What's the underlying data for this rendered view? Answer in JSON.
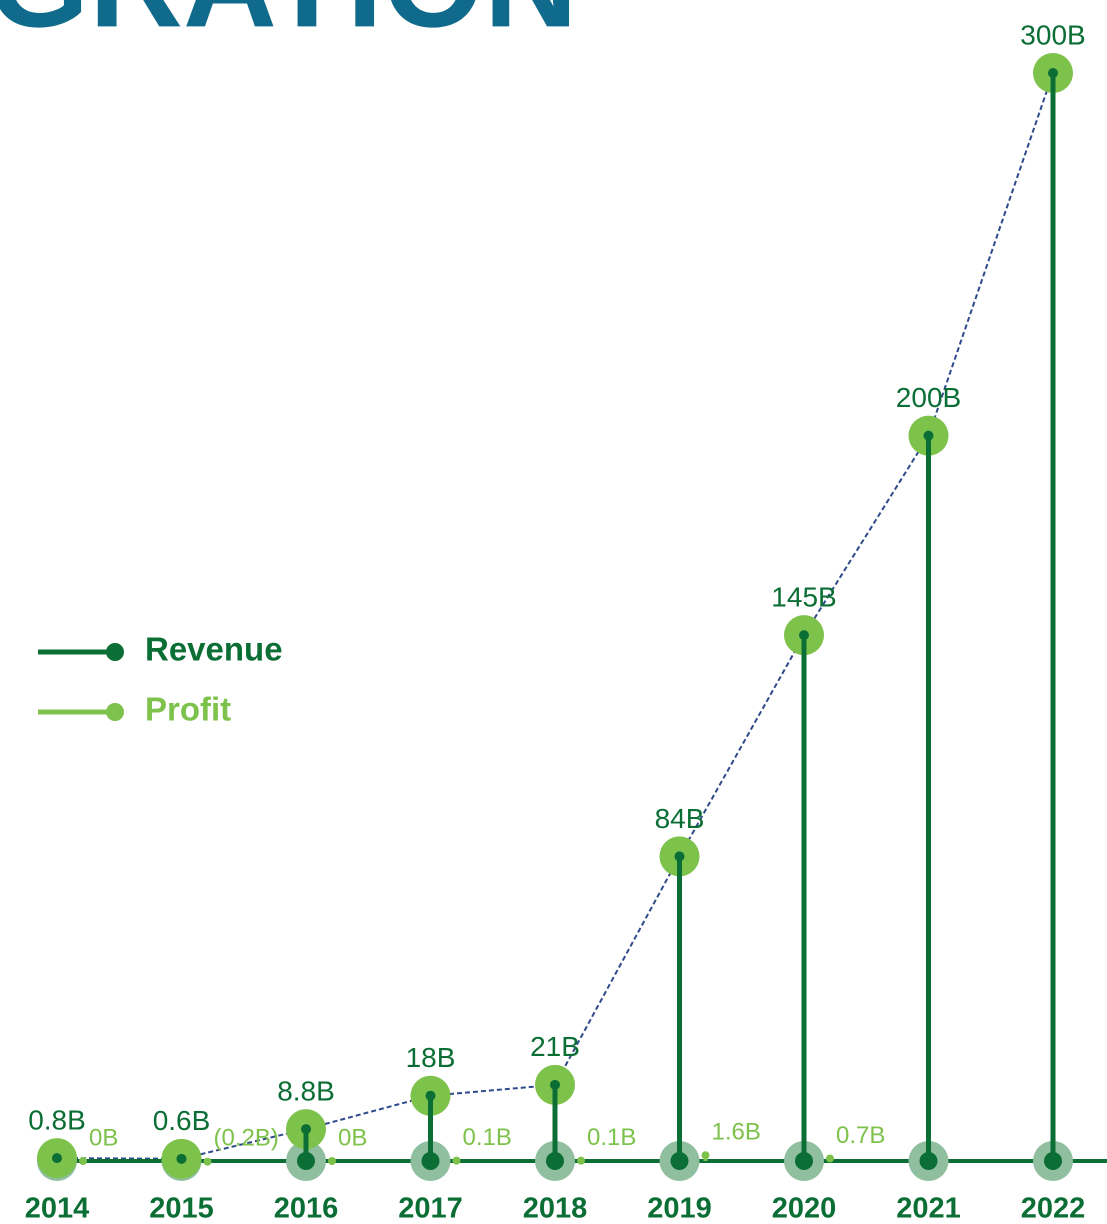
{
  "chart_data": {
    "type": "lollipop",
    "title": "GRATION",
    "categories": [
      "2014",
      "2015",
      "2016",
      "2017",
      "2018",
      "2019",
      "2020",
      "2021",
      "2022"
    ],
    "series": [
      {
        "name": "Revenue",
        "color": "#0b6e35",
        "marker_color": "#7dc24b",
        "values": [
          0.8,
          0.6,
          8.8,
          18,
          21,
          84,
          145,
          200,
          300
        ],
        "value_labels": [
          "0.8B",
          "0.6B",
          "8.8B",
          "18B",
          "21B",
          "84B",
          "145B",
          "200B",
          "300B"
        ]
      },
      {
        "name": "Profit",
        "color": "#7dc24b",
        "values": [
          0,
          -0.2,
          0,
          0.1,
          0.1,
          1.6,
          0.7,
          null,
          null
        ],
        "value_labels": [
          "0B",
          "(0.2B)",
          "0B",
          "0.1B",
          "0.1B",
          "1.6B",
          "0.7B",
          null,
          null
        ]
      }
    ],
    "ylim": [
      0,
      300
    ],
    "legend": "left"
  }
}
